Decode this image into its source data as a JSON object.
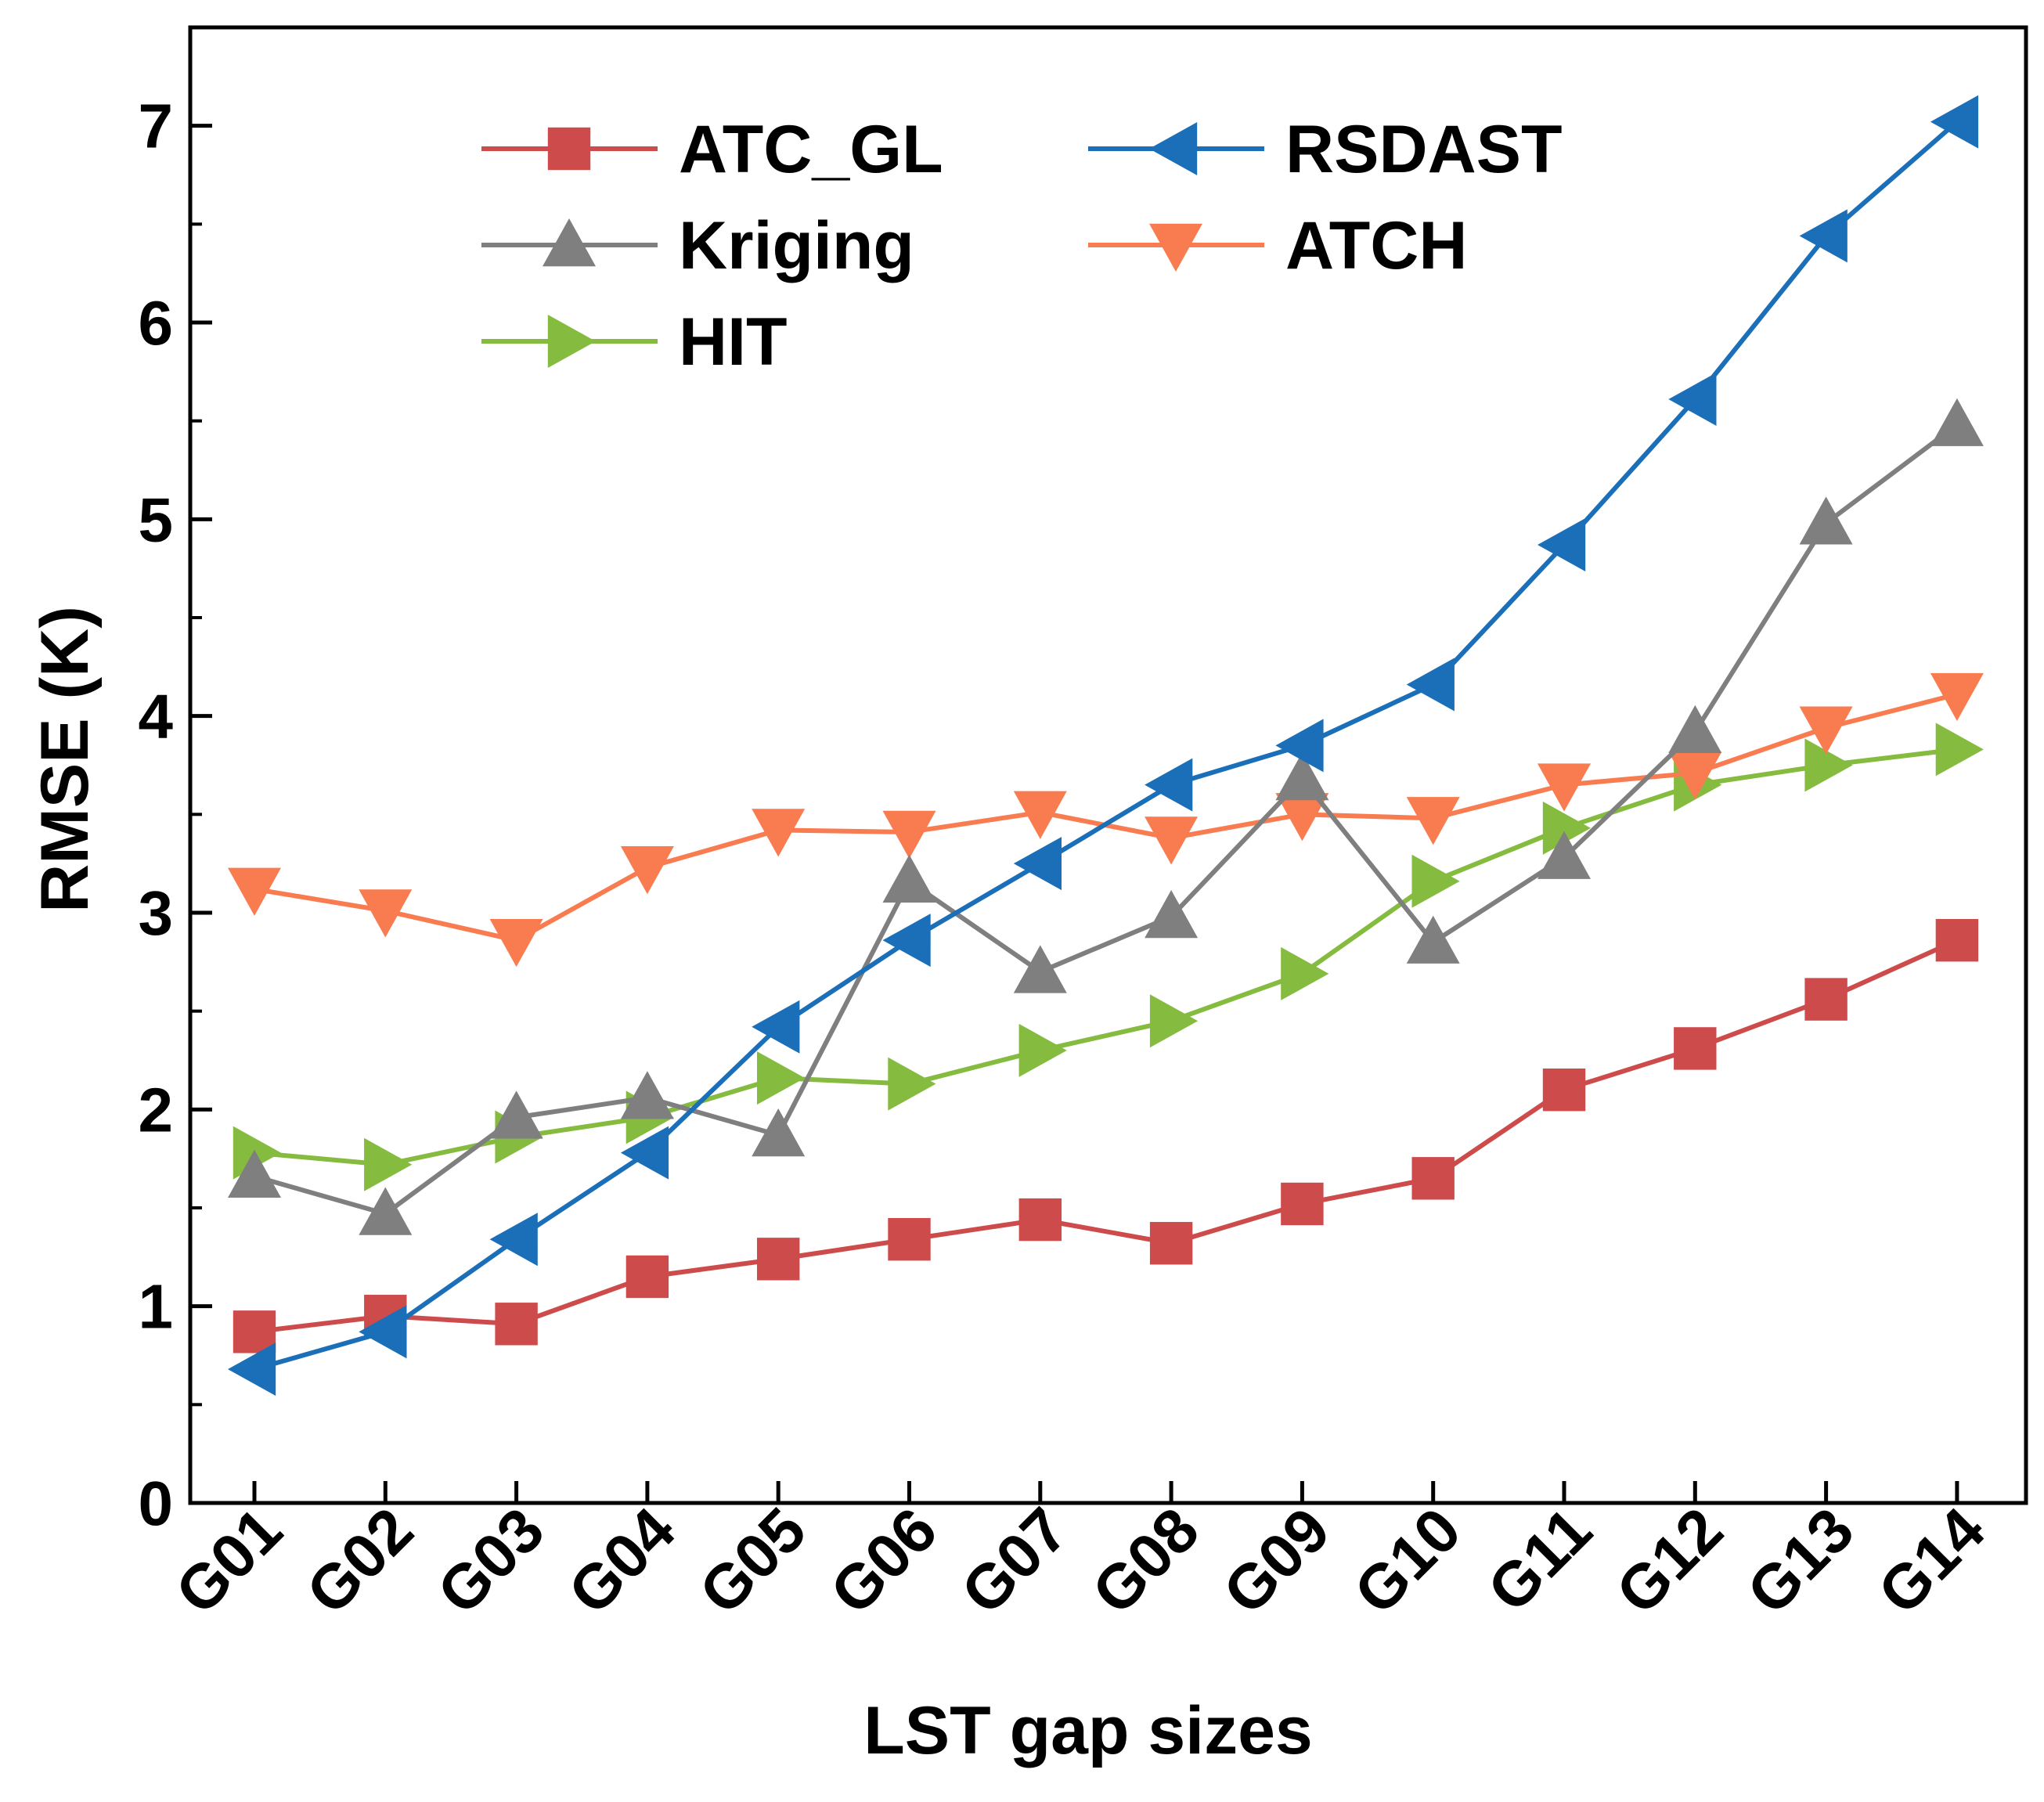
{
  "chart_data": {
    "type": "line",
    "title": "",
    "xlabel": "LST gap sizes",
    "ylabel": "RMSE (K)",
    "ylim": [
      0,
      7.5
    ],
    "y_ticks": [
      0,
      1,
      2,
      3,
      4,
      5,
      6,
      7
    ],
    "categories": [
      "G01",
      "G02",
      "G03",
      "G04",
      "G05",
      "G06",
      "G07",
      "G08",
      "G09",
      "G10",
      "G11",
      "G12",
      "G13",
      "G14"
    ],
    "legend_position": "top-center",
    "series": [
      {
        "name": "ATC_GL",
        "color": "#cd4b4b",
        "marker": "square",
        "values": [
          0.87,
          0.95,
          0.91,
          1.15,
          1.24,
          1.34,
          1.44,
          1.32,
          1.52,
          1.65,
          2.1,
          2.31,
          2.56,
          2.86
        ]
      },
      {
        "name": "RSDAST",
        "color": "#1b6fb8",
        "marker": "triangle-left",
        "values": [
          0.68,
          0.87,
          1.34,
          1.78,
          2.42,
          2.86,
          3.25,
          3.65,
          3.85,
          4.16,
          4.87,
          5.61,
          6.44,
          7.02
        ]
      },
      {
        "name": "Kriging",
        "color": "#7f7f7f",
        "marker": "triangle-up",
        "values": [
          1.66,
          1.47,
          1.96,
          2.06,
          1.87,
          3.16,
          2.7,
          2.98,
          3.68,
          2.85,
          3.28,
          3.92,
          4.98,
          5.48
        ]
      },
      {
        "name": "ATCH",
        "color": "#f97b50",
        "marker": "triangle-down",
        "values": [
          3.12,
          3.01,
          2.86,
          3.23,
          3.42,
          3.41,
          3.51,
          3.38,
          3.5,
          3.48,
          3.65,
          3.71,
          3.94,
          4.11
        ]
      },
      {
        "name": "HIT",
        "color": "#85bb3f",
        "marker": "triangle-right",
        "values": [
          1.78,
          1.72,
          1.86,
          1.96,
          2.16,
          2.13,
          2.3,
          2.45,
          2.69,
          3.16,
          3.43,
          3.65,
          3.75,
          3.83
        ]
      }
    ]
  }
}
